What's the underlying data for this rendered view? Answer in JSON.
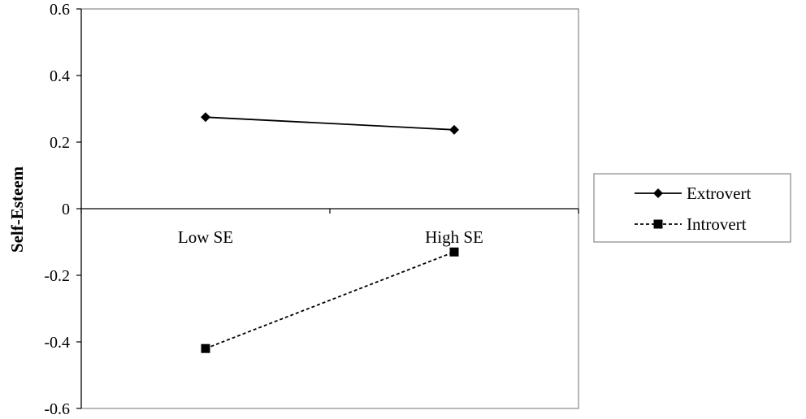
{
  "chart_data": {
    "type": "line",
    "categories": [
      "Low SE",
      "High SE"
    ],
    "series": [
      {
        "name": "Extrovert",
        "values": [
          0.275,
          0.237
        ],
        "marker": "diamond",
        "line_style": "solid",
        "color": "#000000"
      },
      {
        "name": "Introvert",
        "values": [
          -0.42,
          -0.13
        ],
        "marker": "square",
        "line_style": "dashed",
        "color": "#000000"
      }
    ],
    "title": "",
    "xlabel": "",
    "ylabel": "Self-Esteem",
    "ylim": [
      -0.6,
      0.6
    ],
    "yticks": [
      0.6,
      0.4,
      0.2,
      0,
      -0.2,
      -0.4,
      -0.6
    ],
    "ytick_labels": [
      "0.6",
      "0.4",
      "0.2",
      "0",
      "-0.2",
      "-0.4",
      "-0.6"
    ],
    "grid": false,
    "category_axis_at": 0,
    "legend_position": "right"
  }
}
